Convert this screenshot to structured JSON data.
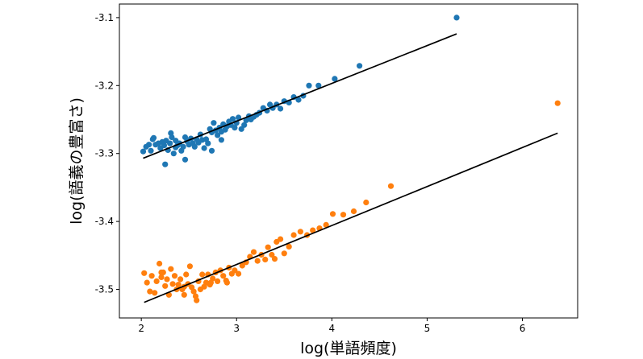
{
  "chart_data": {
    "type": "scatter",
    "xlabel": "log(単語頻度)",
    "ylabel": "log(語義の豊富さ)",
    "xlim": [
      1.77,
      6.58
    ],
    "ylim": [
      -3.542,
      -3.08
    ],
    "xticks": [
      2,
      3,
      4,
      5,
      6
    ],
    "yticks": [
      -3.1,
      -3.2,
      -3.3,
      -3.4,
      -3.5
    ],
    "xtick_labels": [
      "2",
      "3",
      "4",
      "5",
      "6"
    ],
    "ytick_labels": [
      "-3.1",
      "-3.2",
      "-3.3",
      "-3.4",
      "-3.5"
    ],
    "grid": false,
    "series": [
      {
        "color": "#1f77b4",
        "points": [
          [
            2.02,
            -3.297
          ],
          [
            2.05,
            -3.29
          ],
          [
            2.08,
            -3.287
          ],
          [
            2.1,
            -3.296
          ],
          [
            2.12,
            -3.279
          ],
          [
            2.15,
            -3.287
          ],
          [
            2.18,
            -3.285
          ],
          [
            2.2,
            -3.292
          ],
          [
            2.22,
            -3.283
          ],
          [
            2.24,
            -3.288
          ],
          [
            2.26,
            -3.281
          ],
          [
            2.28,
            -3.295
          ],
          [
            2.3,
            -3.285
          ],
          [
            2.32,
            -3.276
          ],
          [
            2.34,
            -3.3
          ],
          [
            2.36,
            -3.291
          ],
          [
            2.38,
            -3.288
          ],
          [
            2.4,
            -3.285
          ],
          [
            2.42,
            -3.296
          ],
          [
            2.44,
            -3.29
          ],
          [
            2.46,
            -3.276
          ],
          [
            2.48,
            -3.282
          ],
          [
            2.5,
            -3.287
          ],
          [
            2.52,
            -3.278
          ],
          [
            2.54,
            -3.285
          ],
          [
            2.56,
            -3.29
          ],
          [
            2.58,
            -3.279
          ],
          [
            2.6,
            -3.284
          ],
          [
            2.62,
            -3.272
          ],
          [
            2.64,
            -3.28
          ],
          [
            2.66,
            -3.292
          ],
          [
            2.68,
            -3.279
          ],
          [
            2.7,
            -3.285
          ],
          [
            2.72,
            -3.264
          ],
          [
            2.74,
            -3.269
          ],
          [
            2.76,
            -3.255
          ],
          [
            2.78,
            -3.266
          ],
          [
            2.8,
            -3.273
          ],
          [
            2.82,
            -3.262
          ],
          [
            2.84,
            -3.268
          ],
          [
            2.86,
            -3.257
          ],
          [
            2.88,
            -3.265
          ],
          [
            2.9,
            -3.26
          ],
          [
            2.92,
            -3.253
          ],
          [
            2.94,
            -3.258
          ],
          [
            2.96,
            -3.249
          ],
          [
            2.98,
            -3.262
          ],
          [
            3.0,
            -3.255
          ],
          [
            3.02,
            -3.247
          ],
          [
            3.05,
            -3.264
          ],
          [
            3.08,
            -3.258
          ],
          [
            3.1,
            -3.251
          ],
          [
            3.13,
            -3.245
          ],
          [
            3.15,
            -3.25
          ],
          [
            3.18,
            -3.246
          ],
          [
            3.21,
            -3.243
          ],
          [
            3.24,
            -3.24
          ],
          [
            3.28,
            -3.233
          ],
          [
            3.32,
            -3.237
          ],
          [
            3.35,
            -3.228
          ],
          [
            3.38,
            -3.233
          ],
          [
            3.42,
            -3.228
          ],
          [
            3.46,
            -3.234
          ],
          [
            3.5,
            -3.223
          ],
          [
            3.55,
            -3.225
          ],
          [
            3.6,
            -3.217
          ],
          [
            3.65,
            -3.221
          ],
          [
            3.7,
            -3.215
          ],
          [
            3.76,
            -3.2
          ],
          [
            3.86,
            -3.2
          ],
          [
            4.03,
            -3.19
          ],
          [
            4.29,
            -3.171
          ],
          [
            5.31,
            -3.1
          ],
          [
            2.13,
            -3.277
          ],
          [
            2.25,
            -3.316
          ],
          [
            2.31,
            -3.27
          ],
          [
            2.36,
            -3.281
          ],
          [
            2.46,
            -3.309
          ],
          [
            2.74,
            -3.296
          ],
          [
            2.84,
            -3.28
          ]
        ],
        "fit_line": [
          [
            2.02,
            -3.307
          ],
          [
            5.31,
            -3.124
          ]
        ]
      },
      {
        "color": "#ff7f0e",
        "points": [
          [
            2.03,
            -3.476
          ],
          [
            2.06,
            -3.49
          ],
          [
            2.09,
            -3.503
          ],
          [
            2.11,
            -3.48
          ],
          [
            2.14,
            -3.505
          ],
          [
            2.16,
            -3.488
          ],
          [
            2.19,
            -3.462
          ],
          [
            2.21,
            -3.482
          ],
          [
            2.23,
            -3.475
          ],
          [
            2.25,
            -3.495
          ],
          [
            2.27,
            -3.485
          ],
          [
            2.29,
            -3.508
          ],
          [
            2.31,
            -3.47
          ],
          [
            2.33,
            -3.492
          ],
          [
            2.35,
            -3.48
          ],
          [
            2.37,
            -3.5
          ],
          [
            2.39,
            -3.493
          ],
          [
            2.41,
            -3.485
          ],
          [
            2.43,
            -3.5
          ],
          [
            2.45,
            -3.496
          ],
          [
            2.47,
            -3.478
          ],
          [
            2.49,
            -3.492
          ],
          [
            2.51,
            -3.466
          ],
          [
            2.53,
            -3.497
          ],
          [
            2.55,
            -3.503
          ],
          [
            2.57,
            -3.51
          ],
          [
            2.6,
            -3.488
          ],
          [
            2.62,
            -3.5
          ],
          [
            2.64,
            -3.478
          ],
          [
            2.66,
            -3.496
          ],
          [
            2.68,
            -3.49
          ],
          [
            2.7,
            -3.478
          ],
          [
            2.72,
            -3.493
          ],
          [
            2.75,
            -3.484
          ],
          [
            2.78,
            -3.475
          ],
          [
            2.8,
            -3.488
          ],
          [
            2.83,
            -3.472
          ],
          [
            2.86,
            -3.48
          ],
          [
            2.89,
            -3.487
          ],
          [
            2.92,
            -3.468
          ],
          [
            2.95,
            -3.477
          ],
          [
            2.98,
            -3.472
          ],
          [
            3.02,
            -3.477
          ],
          [
            3.06,
            -3.465
          ],
          [
            3.1,
            -3.46
          ],
          [
            3.14,
            -3.452
          ],
          [
            3.18,
            -3.445
          ],
          [
            3.22,
            -3.458
          ],
          [
            3.26,
            -3.449
          ],
          [
            3.3,
            -3.456
          ],
          [
            3.33,
            -3.438
          ],
          [
            3.37,
            -3.449
          ],
          [
            3.42,
            -3.43
          ],
          [
            3.46,
            -3.426
          ],
          [
            3.5,
            -3.447
          ],
          [
            3.55,
            -3.437
          ],
          [
            3.6,
            -3.42
          ],
          [
            3.67,
            -3.415
          ],
          [
            3.74,
            -3.42
          ],
          [
            3.8,
            -3.413
          ],
          [
            3.87,
            -3.41
          ],
          [
            3.94,
            -3.405
          ],
          [
            4.01,
            -3.389
          ],
          [
            4.12,
            -3.39
          ],
          [
            4.23,
            -3.385
          ],
          [
            4.36,
            -3.372
          ],
          [
            4.62,
            -3.348
          ],
          [
            6.37,
            -3.226
          ],
          [
            2.21,
            -3.475
          ],
          [
            2.45,
            -3.508
          ],
          [
            2.58,
            -3.516
          ],
          [
            2.73,
            -3.49
          ],
          [
            2.9,
            -3.49
          ],
          [
            3.4,
            -3.455
          ]
        ],
        "fit_line": [
          [
            2.03,
            -3.519
          ],
          [
            6.37,
            -3.27
          ]
        ]
      }
    ]
  }
}
